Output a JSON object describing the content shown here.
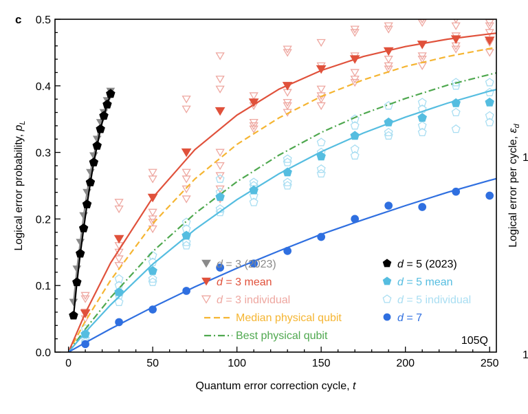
{
  "panel_label": "c",
  "chart_data": {
    "type": "scatter",
    "xlabel": "Quantum error correction cycle, t",
    "xlabel_main": "Quantum error correction cycle, ",
    "xlabel_var": "t",
    "ylabel_main": "Logical error probability, ",
    "ylabel_var": "p",
    "ylabel_sub": "L",
    "y2label_main": "Logical error per cycle, ",
    "y2label_var": "ε",
    "y2label_sub": "d",
    "y2_tick_labels": [
      "1",
      "1"
    ],
    "xlim": [
      -8,
      254
    ],
    "ylim": [
      0,
      0.5
    ],
    "x_ticks": [
      0,
      50,
      100,
      150,
      200,
      250
    ],
    "x_tick_labels": [
      "0",
      "50",
      "100",
      "150",
      "200",
      "250"
    ],
    "y_ticks": [
      0,
      0.1,
      0.2,
      0.3,
      0.4,
      0.5
    ],
    "y_tick_labels": [
      "0.0",
      "0.1",
      "0.2",
      "0.3",
      "0.4",
      "0.5"
    ],
    "grid": false,
    "legend_placement": "bottom-right",
    "annotation": "105Q",
    "colors": {
      "d3_2023": "#8a8a8a",
      "d5_2023": "#000000",
      "d3_mean": "#e0513b",
      "d3_individual": "#eea7a0",
      "d5_mean": "#55bde0",
      "d5_individual": "#a9def2",
      "d7": "#2f6fe0",
      "median": "#f5b532",
      "best": "#4fa84f"
    },
    "legend": [
      {
        "prefix": "d",
        "label": " = 3 (2023)",
        "series": "d3_2023",
        "marker": "triangle-down-filled"
      },
      {
        "prefix": "d",
        "label": " = 5 (2023)",
        "series": "d5_2023",
        "marker": "pentagon-filled"
      },
      {
        "prefix": "d",
        "label": " = 3 mean",
        "series": "d3_mean",
        "marker": "triangle-down-filled"
      },
      {
        "prefix": "d",
        "label": " = 5 mean",
        "series": "d5_mean",
        "marker": "pentagon-filled"
      },
      {
        "prefix": "d",
        "label": " = 3 individual",
        "series": "d3_individual",
        "marker": "triangle-down-open"
      },
      {
        "prefix": "d",
        "label": " = 5 individual",
        "series": "d5_individual",
        "marker": "pentagon-open"
      },
      {
        "prefix": "",
        "label": "Median physical qubit",
        "series": "median",
        "marker": "dashed-line"
      },
      {
        "prefix": "d",
        "label": " = 7",
        "series": "d7",
        "marker": "circle-filled"
      },
      {
        "prefix": "",
        "label": "Best physical qubit",
        "series": "best",
        "marker": "dashdot-line"
      }
    ],
    "lines": [
      {
        "series": "median",
        "style": "dashed",
        "x": [
          0,
          10,
          25,
          50,
          75,
          100,
          125,
          150,
          175,
          200,
          225,
          250,
          265
        ],
        "y": [
          0,
          0.0465,
          0.108,
          0.193,
          0.26,
          0.312,
          0.352,
          0.384,
          0.409,
          0.429,
          0.444,
          0.456,
          0.462
        ]
      },
      {
        "series": "best",
        "style": "dashdot",
        "x": [
          0,
          10,
          25,
          50,
          75,
          100,
          125,
          150,
          175,
          200,
          225,
          250,
          265
        ],
        "y": [
          0,
          0.0346,
          0.082,
          0.151,
          0.208,
          0.256,
          0.296,
          0.33,
          0.358,
          0.381,
          0.401,
          0.417,
          0.426
        ]
      },
      {
        "series": "d3_mean",
        "style": "solid",
        "x": [
          0,
          10,
          25,
          50,
          75,
          100,
          125,
          150,
          175,
          200,
          225,
          250,
          265
        ],
        "y": [
          0,
          0.0587,
          0.134,
          0.232,
          0.304,
          0.356,
          0.395,
          0.423,
          0.444,
          0.459,
          0.47,
          0.478,
          0.482
        ]
      },
      {
        "series": "d5_mean",
        "style": "solid",
        "x": [
          0,
          10,
          25,
          50,
          75,
          100,
          125,
          150,
          175,
          200,
          225,
          250,
          265
        ],
        "y": [
          0,
          0.03,
          0.071,
          0.132,
          0.184,
          0.229,
          0.268,
          0.301,
          0.329,
          0.353,
          0.374,
          0.392,
          0.401
        ]
      },
      {
        "series": "d7",
        "style": "solid",
        "x": [
          0,
          10,
          25,
          50,
          75,
          100,
          125,
          150,
          175,
          200,
          225,
          250,
          265
        ],
        "y": [
          0,
          0.0143,
          0.035,
          0.0675,
          0.098,
          0.126,
          0.152,
          0.177,
          0.199,
          0.22,
          0.24,
          0.258,
          0.268
        ]
      },
      {
        "series": "d3_2023",
        "style": "solid",
        "x": [
          3,
          5,
          7,
          9,
          11,
          13,
          15,
          17,
          19,
          21,
          23,
          25
        ],
        "y": [
          0.075,
          0.125,
          0.165,
          0.205,
          0.24,
          0.27,
          0.295,
          0.32,
          0.345,
          0.36,
          0.378,
          0.392
        ]
      },
      {
        "series": "d5_2023",
        "style": "solid",
        "x": [
          3,
          5,
          7,
          9,
          11,
          13,
          15,
          17,
          19,
          21,
          23,
          25
        ],
        "y": [
          0.055,
          0.105,
          0.148,
          0.186,
          0.222,
          0.255,
          0.285,
          0.31,
          0.335,
          0.355,
          0.372,
          0.388
        ]
      }
    ],
    "scatter": [
      {
        "series": "d3_individual",
        "marker": "triangle-down-open",
        "points": [
          [
            10,
            0.085
          ],
          [
            10,
            0.08
          ],
          [
            10,
            0.06
          ],
          [
            10,
            0.05
          ],
          [
            30,
            0.225
          ],
          [
            30,
            0.215
          ],
          [
            30,
            0.16
          ],
          [
            30,
            0.15
          ],
          [
            30,
            0.14
          ],
          [
            30,
            0.13
          ],
          [
            50,
            0.27
          ],
          [
            50,
            0.26
          ],
          [
            50,
            0.21
          ],
          [
            50,
            0.2
          ],
          [
            50,
            0.195
          ],
          [
            50,
            0.185
          ],
          [
            70,
            0.38
          ],
          [
            70,
            0.365
          ],
          [
            70,
            0.3
          ],
          [
            70,
            0.27
          ],
          [
            70,
            0.26
          ],
          [
            70,
            0.245
          ],
          [
            70,
            0.23
          ],
          [
            90,
            0.445
          ],
          [
            90,
            0.41
          ],
          [
            90,
            0.395
          ],
          [
            90,
            0.3
          ],
          [
            90,
            0.28
          ],
          [
            90,
            0.265
          ],
          [
            90,
            0.245
          ],
          [
            90,
            0.23
          ],
          [
            110,
            0.385
          ],
          [
            110,
            0.37
          ],
          [
            110,
            0.345
          ],
          [
            110,
            0.335
          ],
          [
            110,
            0.34
          ],
          [
            130,
            0.455
          ],
          [
            130,
            0.45
          ],
          [
            130,
            0.39
          ],
          [
            130,
            0.375
          ],
          [
            130,
            0.37
          ],
          [
            130,
            0.36
          ],
          [
            150,
            0.465
          ],
          [
            150,
            0.43
          ],
          [
            150,
            0.395
          ],
          [
            150,
            0.385
          ],
          [
            150,
            0.38
          ],
          [
            150,
            0.37
          ],
          [
            170,
            0.485
          ],
          [
            170,
            0.48
          ],
          [
            170,
            0.445
          ],
          [
            170,
            0.42
          ],
          [
            170,
            0.41
          ],
          [
            170,
            0.405
          ],
          [
            190,
            0.49
          ],
          [
            190,
            0.485
          ],
          [
            190,
            0.44
          ],
          [
            190,
            0.43
          ],
          [
            190,
            0.425
          ],
          [
            210,
            0.5
          ],
          [
            210,
            0.495
          ],
          [
            210,
            0.445
          ],
          [
            210,
            0.44
          ],
          [
            210,
            0.43
          ],
          [
            230,
            0.5
          ],
          [
            230,
            0.49
          ],
          [
            230,
            0.475
          ],
          [
            230,
            0.46
          ],
          [
            230,
            0.455
          ],
          [
            250,
            0.495
          ],
          [
            250,
            0.49
          ],
          [
            250,
            0.48
          ],
          [
            250,
            0.465
          ],
          [
            250,
            0.45
          ]
        ]
      },
      {
        "series": "d5_individual",
        "marker": "pentagon-open",
        "points": [
          [
            10,
            0.035
          ],
          [
            10,
            0.02
          ],
          [
            10,
            0.015
          ],
          [
            30,
            0.11
          ],
          [
            30,
            0.1
          ],
          [
            30,
            0.085
          ],
          [
            30,
            0.075
          ],
          [
            50,
            0.145
          ],
          [
            50,
            0.135
          ],
          [
            50,
            0.11
          ],
          [
            50,
            0.105
          ],
          [
            70,
            0.195
          ],
          [
            70,
            0.185
          ],
          [
            70,
            0.165
          ],
          [
            70,
            0.16
          ],
          [
            90,
            0.26
          ],
          [
            90,
            0.24
          ],
          [
            90,
            0.215
          ],
          [
            90,
            0.21
          ],
          [
            110,
            0.255
          ],
          [
            110,
            0.25
          ],
          [
            110,
            0.235
          ],
          [
            110,
            0.225
          ],
          [
            130,
            0.29
          ],
          [
            130,
            0.285
          ],
          [
            130,
            0.255
          ],
          [
            130,
            0.25
          ],
          [
            150,
            0.315
          ],
          [
            150,
            0.3
          ],
          [
            150,
            0.275
          ],
          [
            150,
            0.268
          ],
          [
            170,
            0.35
          ],
          [
            170,
            0.34
          ],
          [
            170,
            0.305
          ],
          [
            170,
            0.295
          ],
          [
            190,
            0.37
          ],
          [
            190,
            0.33
          ],
          [
            190,
            0.325
          ],
          [
            210,
            0.375
          ],
          [
            210,
            0.365
          ],
          [
            210,
            0.34
          ],
          [
            210,
            0.33
          ],
          [
            230,
            0.405
          ],
          [
            230,
            0.4
          ],
          [
            230,
            0.36
          ],
          [
            230,
            0.335
          ],
          [
            250,
            0.405
          ],
          [
            250,
            0.39
          ],
          [
            250,
            0.355
          ],
          [
            250,
            0.345
          ]
        ]
      },
      {
        "series": "d3_2023",
        "marker": "triangle-down-filled",
        "points": [
          [
            3,
            0.075
          ],
          [
            5,
            0.125
          ],
          [
            7,
            0.165
          ],
          [
            9,
            0.205
          ],
          [
            11,
            0.24
          ],
          [
            13,
            0.27
          ],
          [
            15,
            0.295
          ],
          [
            17,
            0.32
          ],
          [
            19,
            0.345
          ],
          [
            21,
            0.36
          ],
          [
            23,
            0.378
          ],
          [
            25,
            0.392
          ]
        ]
      },
      {
        "series": "d5_2023",
        "marker": "pentagon-filled",
        "points": [
          [
            3,
            0.055
          ],
          [
            5,
            0.105
          ],
          [
            7,
            0.148
          ],
          [
            9,
            0.186
          ],
          [
            11,
            0.222
          ],
          [
            13,
            0.255
          ],
          [
            15,
            0.285
          ],
          [
            17,
            0.31
          ],
          [
            19,
            0.335
          ],
          [
            21,
            0.355
          ],
          [
            23,
            0.372
          ],
          [
            25,
            0.388
          ]
        ]
      },
      {
        "series": "d3_mean",
        "marker": "triangle-down-filled",
        "points": [
          [
            10,
            0.058
          ],
          [
            30,
            0.17
          ],
          [
            50,
            0.232
          ],
          [
            70,
            0.3
          ],
          [
            90,
            0.362
          ],
          [
            110,
            0.375
          ],
          [
            130,
            0.4
          ],
          [
            150,
            0.425
          ],
          [
            170,
            0.44
          ],
          [
            190,
            0.452
          ],
          [
            210,
            0.462
          ],
          [
            230,
            0.47
          ],
          [
            250,
            0.468
          ]
        ]
      },
      {
        "series": "d5_mean",
        "marker": "pentagon-filled",
        "points": [
          [
            10,
            0.027
          ],
          [
            30,
            0.09
          ],
          [
            50,
            0.122
          ],
          [
            70,
            0.175
          ],
          [
            90,
            0.233
          ],
          [
            110,
            0.243
          ],
          [
            130,
            0.27
          ],
          [
            150,
            0.294
          ],
          [
            170,
            0.325
          ],
          [
            190,
            0.345
          ],
          [
            210,
            0.352
          ],
          [
            230,
            0.374
          ],
          [
            250,
            0.375
          ]
        ]
      },
      {
        "series": "d7",
        "marker": "circle-filled",
        "points": [
          [
            10,
            0.012
          ],
          [
            30,
            0.045
          ],
          [
            50,
            0.064
          ],
          [
            70,
            0.092
          ],
          [
            90,
            0.127
          ],
          [
            110,
            0.133
          ],
          [
            130,
            0.152
          ],
          [
            150,
            0.173
          ],
          [
            170,
            0.2
          ],
          [
            190,
            0.22
          ],
          [
            210,
            0.218
          ],
          [
            230,
            0.241
          ],
          [
            250,
            0.235
          ]
        ]
      }
    ]
  }
}
